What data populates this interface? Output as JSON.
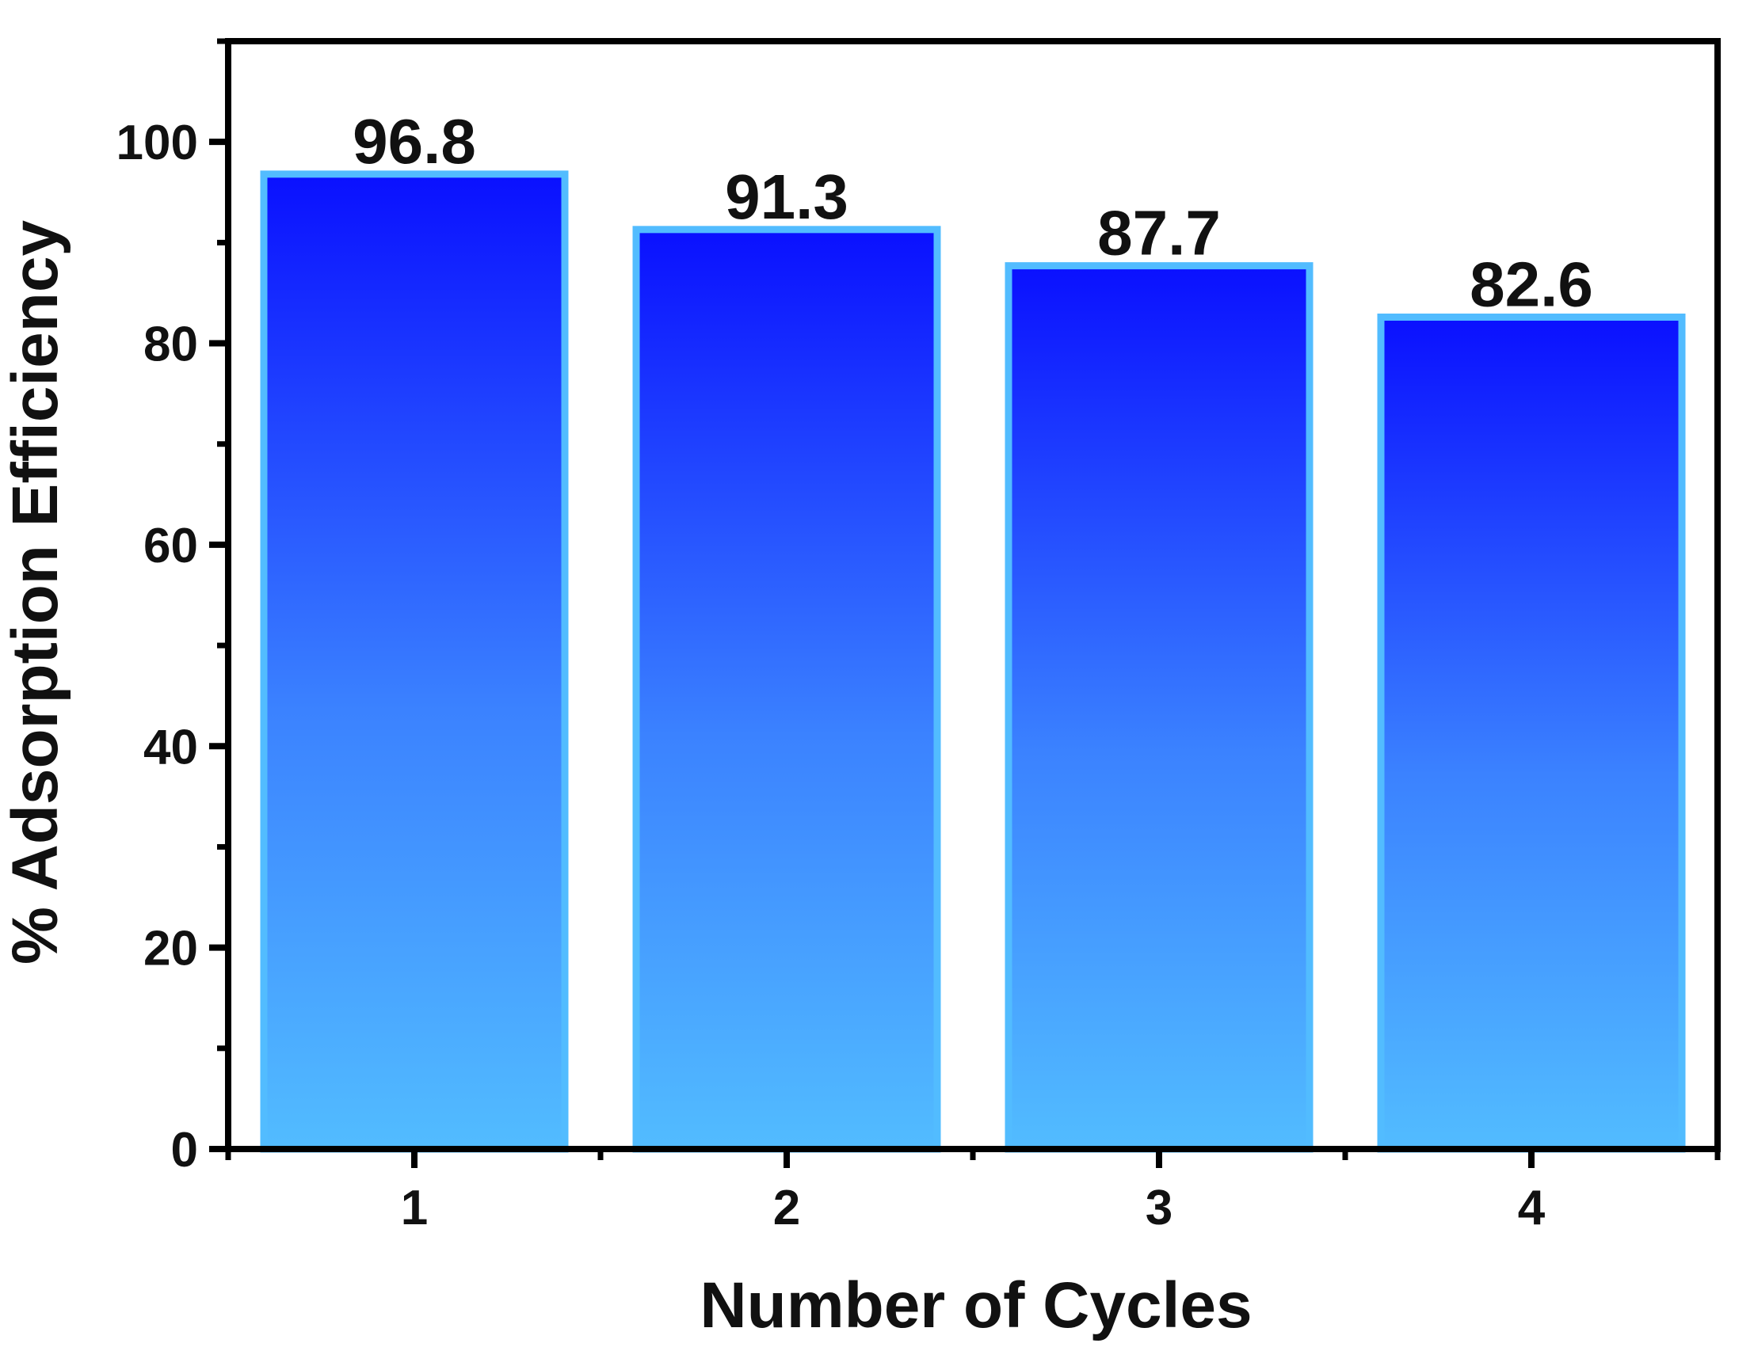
{
  "chart_data": {
    "type": "bar",
    "categories": [
      "1",
      "2",
      "3",
      "4"
    ],
    "values": [
      96.8,
      91.3,
      87.7,
      82.6
    ],
    "data_labels": [
      "96.8",
      "91.3",
      "87.7",
      "82.6"
    ],
    "title": "",
    "xlabel": "Number of Cycles",
    "ylabel": "% Adsorption Efficiency",
    "ylim": [
      0,
      110
    ],
    "yticks": [
      0,
      20,
      40,
      60,
      80,
      100
    ],
    "ytick_labels": [
      "0",
      "20",
      "40",
      "60",
      "80",
      "100"
    ],
    "grid": false,
    "legend": "none",
    "colors": {
      "bar_top": "#0a10ff",
      "bar_bottom": "#52bcff",
      "bar_edge": "#52bcff",
      "axis": "#000000",
      "text": "#111111"
    }
  }
}
